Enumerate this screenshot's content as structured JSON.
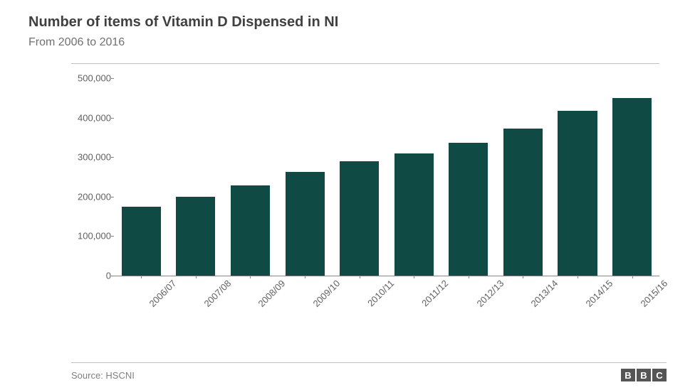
{
  "title": "Number of items of Vitamin D Dispensed in NI",
  "subtitle": "From 2006 to 2016",
  "source": "Source: HSCNI",
  "logo_letters": [
    "B",
    "B",
    "C"
  ],
  "chart": {
    "type": "bar",
    "categories": [
      "2006/07",
      "2007/08",
      "2008/09",
      "2009/10",
      "2010/11",
      "2011/12",
      "2012/13",
      "2013/14",
      "2014/15",
      "2015/16"
    ],
    "values": [
      175000,
      200000,
      228000,
      262000,
      290000,
      310000,
      337000,
      373000,
      417000,
      450000
    ],
    "bar_color": "#0f4a45",
    "background_color": "#ffffff",
    "axis_color": "#888888",
    "text_color": "#606060",
    "title_color": "#404040",
    "subtitle_color": "#707070",
    "title_fontsize": 20,
    "subtitle_fontsize": 16,
    "label_fontsize": 13,
    "ylim": [
      0,
      500000
    ],
    "ytick_step": 100000,
    "yticks": [
      0,
      100000,
      200000,
      300000,
      400000,
      500000
    ],
    "ytick_labels": [
      "0",
      "100,000",
      "200,000",
      "300,000",
      "400,000",
      "500,000"
    ],
    "bar_width": 0.72,
    "xlabel_rotation": -45
  }
}
